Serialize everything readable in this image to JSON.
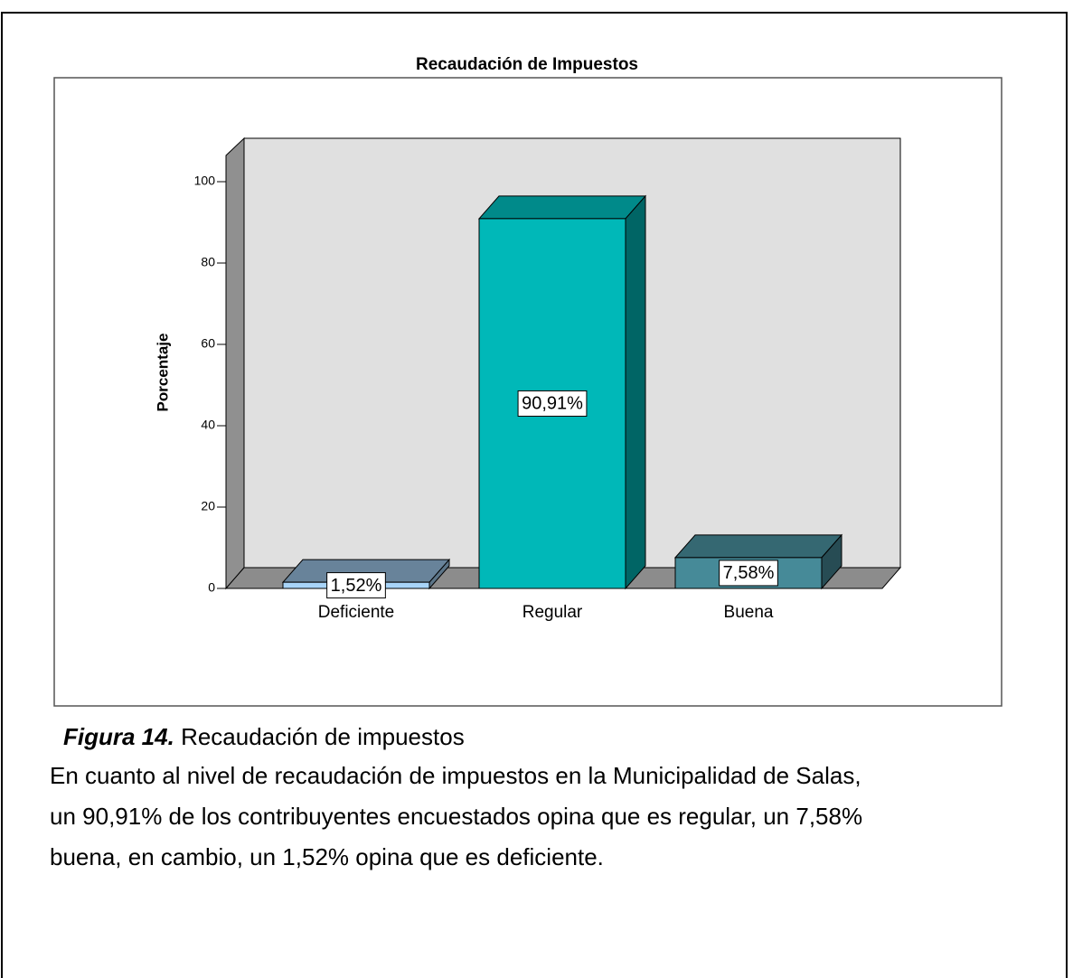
{
  "chart_data": {
    "type": "bar3d",
    "title": "Recaudación de Impuestos",
    "ylabel": "Porcentaje",
    "categories": [
      "Deficiente",
      "Regular",
      "Buena"
    ],
    "values": [
      1.52,
      90.91,
      7.58
    ],
    "value_labels": [
      "1,52%",
      "90,91%",
      "7,58%"
    ],
    "colors": [
      "#a8d4f8",
      "#00b8b8",
      "#468a98"
    ],
    "ylim": [
      0,
      100
    ],
    "yticks": [
      0,
      20,
      40,
      60,
      80,
      100
    ]
  },
  "caption": {
    "label": "Figura 14.",
    "text": "Recaudación de impuestos"
  },
  "paragraph": [
    "En cuanto al nivel de recaudación de impuestos en la Municipalidad de Salas,",
    "un 90,91% de los contribuyentes encuestados opina que es regular, un 7,58%",
    "buena, en cambio, un 1,52% opina que es deficiente."
  ]
}
